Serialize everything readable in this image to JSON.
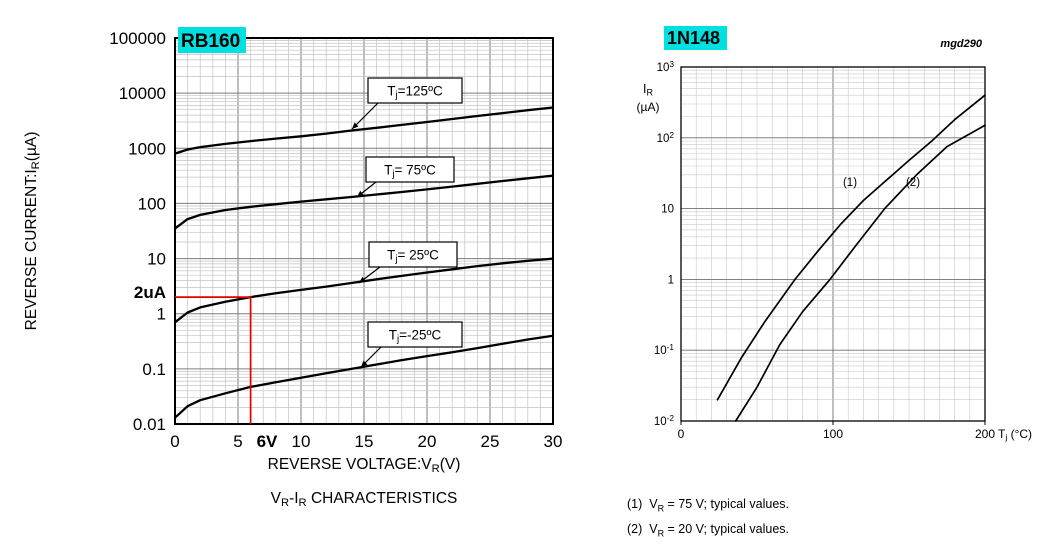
{
  "highlight_color": "#00e0e0",
  "annotation_color": "#e00000",
  "chart_data": [
    {
      "id": "rb160",
      "type": "line",
      "title": "RB160",
      "xlabel": "REVERSE VOLTAGE:V_{R}(V)",
      "ylabel": "REVERSE CURRENT:I_{R}(µA)",
      "caption": "V_{R}-I_{R} CHARACTERISTICS",
      "x_scale": "linear",
      "xlim": [
        0,
        30
      ],
      "x_major_ticks": [
        0,
        5,
        10,
        15,
        20,
        25,
        30
      ],
      "x_minor_step": 1,
      "y_scale": "log",
      "ylim": [
        0.01,
        100000
      ],
      "y_tick_labels": [
        "100000",
        "10000",
        "1000",
        "100",
        "10",
        "1",
        "0.1",
        "0.01"
      ],
      "grid": true,
      "legend_position": "inline-callout-boxes",
      "series": [
        {
          "id": "tj-125",
          "label": "T_{j}=125ºC",
          "points": [
            [
              0,
              800
            ],
            [
              1,
              950
            ],
            [
              2,
              1050
            ],
            [
              4,
              1200
            ],
            [
              6,
              1350
            ],
            [
              8,
              1500
            ],
            [
              10,
              1650
            ],
            [
              12,
              1850
            ],
            [
              14,
              2100
            ],
            [
              16,
              2350
            ],
            [
              18,
              2650
            ],
            [
              20,
              3000
            ],
            [
              22,
              3400
            ],
            [
              24,
              3850
            ],
            [
              26,
              4350
            ],
            [
              28,
              4900
            ],
            [
              30,
              5500
            ]
          ]
        },
        {
          "id": "tj-75",
          "label": "T_{j}= 75ºC",
          "points": [
            [
              0,
              35
            ],
            [
              1,
              52
            ],
            [
              2,
              62
            ],
            [
              4,
              76
            ],
            [
              6,
              87
            ],
            [
              8,
              97
            ],
            [
              10,
              108
            ],
            [
              12,
              119
            ],
            [
              14,
              131
            ],
            [
              16,
              145
            ],
            [
              18,
              161
            ],
            [
              20,
              180
            ],
            [
              22,
              202
            ],
            [
              24,
              227
            ],
            [
              26,
              255
            ],
            [
              28,
              286
            ],
            [
              30,
              320
            ]
          ]
        },
        {
          "id": "tj-25",
          "label": "T_{j}= 25ºC",
          "points": [
            [
              0,
              0.7
            ],
            [
              1,
              1.05
            ],
            [
              2,
              1.3
            ],
            [
              4,
              1.65
            ],
            [
              6,
              2.0
            ],
            [
              8,
              2.35
            ],
            [
              10,
              2.7
            ],
            [
              12,
              3.1
            ],
            [
              14,
              3.6
            ],
            [
              16,
              4.2
            ],
            [
              18,
              4.85
            ],
            [
              20,
              5.6
            ],
            [
              22,
              6.4
            ],
            [
              24,
              7.3
            ],
            [
              26,
              8.2
            ],
            [
              28,
              9.1
            ],
            [
              30,
              10
            ]
          ]
        },
        {
          "id": "tj-minus-25",
          "label": "T_{j}=-25ºC",
          "points": [
            [
              0,
              0.013
            ],
            [
              1,
              0.021
            ],
            [
              2,
              0.027
            ],
            [
              4,
              0.036
            ],
            [
              6,
              0.047
            ],
            [
              8,
              0.057
            ],
            [
              10,
              0.069
            ],
            [
              12,
              0.083
            ],
            [
              14,
              0.1
            ],
            [
              16,
              0.12
            ],
            [
              18,
              0.144
            ],
            [
              20,
              0.17
            ],
            [
              22,
              0.2
            ],
            [
              24,
              0.238
            ],
            [
              26,
              0.285
            ],
            [
              28,
              0.34
            ],
            [
              30,
              0.4
            ]
          ]
        }
      ],
      "annotation": {
        "current_label": "2uA",
        "voltage_label": "6V",
        "current_value": 2,
        "voltage_value": 6
      }
    },
    {
      "id": "1n148",
      "type": "line",
      "title": "1N148",
      "watermark": "mgd290",
      "xlabel": "T_{j} (°C)",
      "ylabel_lines": [
        "I_{R}",
        "(µA)"
      ],
      "x_scale": "linear",
      "xlim": [
        0,
        200
      ],
      "x_major_ticks": [
        0,
        100,
        200
      ],
      "x_minor_step": 10,
      "y_scale": "log",
      "ylim": [
        0.01,
        1000
      ],
      "y_tick_labels": [
        "10^{3}",
        "10^{2}",
        "10",
        "1",
        "10^{-1}",
        "10^{-2}"
      ],
      "grid": true,
      "series": [
        {
          "id": "curve-1",
          "label": "(1)",
          "points": [
            [
              24,
              0.02
            ],
            [
              40,
              0.08
            ],
            [
              55,
              0.25
            ],
            [
              75,
              1.0
            ],
            [
              90,
              2.5
            ],
            [
              105,
              6
            ],
            [
              120,
              13
            ],
            [
              135,
              25
            ],
            [
              150,
              48
            ],
            [
              165,
              90
            ],
            [
              180,
              180
            ],
            [
              200,
              400
            ]
          ]
        },
        {
          "id": "curve-2",
          "label": "(2)",
          "points": [
            [
              36,
              0.01
            ],
            [
              50,
              0.03
            ],
            [
              65,
              0.12
            ],
            [
              80,
              0.35
            ],
            [
              98,
              1.0
            ],
            [
              115,
              3
            ],
            [
              134,
              10
            ],
            [
              155,
              30
            ],
            [
              175,
              75
            ],
            [
              200,
              150
            ]
          ]
        }
      ],
      "footnotes": [
        "(1)  V_{R} = 75 V; typical values.",
        "(2)  V_{R} = 20 V; typical values."
      ]
    }
  ]
}
